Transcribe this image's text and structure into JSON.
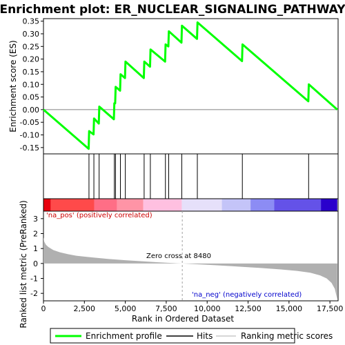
{
  "chart_data": {
    "type": "line",
    "title": "Enrichment plot: ER_NUCLEAR_SIGNALING_PATHWAY",
    "ylabel_top": "Enrichment score (ES)",
    "ylabel_bottom": "Ranked list metric (PreRanked)",
    "xlabel": "Rank in Ordered Dataset",
    "xlim": [
      0,
      18000
    ],
    "es_ylim": [
      -0.175,
      0.36
    ],
    "metric_ylim": [
      -2.5,
      3.5
    ],
    "es_yticks": [
      -0.15,
      -0.1,
      -0.05,
      0.0,
      0.05,
      0.1,
      0.15,
      0.2,
      0.25,
      0.3,
      0.35
    ],
    "es_ytick_labels": [
      "-0.15",
      "-0.10",
      "-0.05",
      "0.00",
      "0.05",
      "0.10",
      "0.15",
      "0.20",
      "0.25",
      "0.30",
      "0.35"
    ],
    "metric_yticks": [
      -2,
      -1,
      0,
      1,
      2,
      3
    ],
    "metric_ytick_labels": [
      "-2",
      "-1",
      "0",
      "1",
      "2",
      "3"
    ],
    "xticks": [
      0,
      2500,
      5000,
      7500,
      10000,
      12500,
      15000,
      17500
    ],
    "xtick_labels": [
      "0",
      "2,500",
      "5,000",
      "7,500",
      "10,000",
      "12,500",
      "15,000",
      "17,500"
    ],
    "hits": [
      2780,
      3080,
      3400,
      4330,
      4400,
      4700,
      5000,
      6150,
      6530,
      7450,
      7650,
      8450,
      9400,
      12150,
      16200
    ],
    "es_curve": [
      [
        0,
        0.0
      ],
      [
        2760,
        -0.155
      ],
      [
        2790,
        -0.085
      ],
      [
        3060,
        -0.098
      ],
      [
        3090,
        -0.035
      ],
      [
        3380,
        -0.055
      ],
      [
        3410,
        0.012
      ],
      [
        4300,
        -0.038
      ],
      [
        4330,
        0.025
      ],
      [
        4380,
        0.025
      ],
      [
        4410,
        0.09
      ],
      [
        4680,
        0.075
      ],
      [
        4710,
        0.14
      ],
      [
        4980,
        0.125
      ],
      [
        5010,
        0.19
      ],
      [
        6130,
        0.125
      ],
      [
        6160,
        0.19
      ],
      [
        6510,
        0.17
      ],
      [
        6540,
        0.238
      ],
      [
        7430,
        0.19
      ],
      [
        7460,
        0.258
      ],
      [
        7630,
        0.25
      ],
      [
        7660,
        0.31
      ],
      [
        8430,
        0.265
      ],
      [
        8460,
        0.332
      ],
      [
        9380,
        0.28
      ],
      [
        9410,
        0.345
      ],
      [
        12130,
        0.192
      ],
      [
        12160,
        0.258
      ],
      [
        16180,
        0.033
      ],
      [
        16210,
        0.1
      ],
      [
        17950,
        0.0
      ]
    ],
    "zero_cross": 8480,
    "zero_cross_label": "Zero cross at 8480",
    "pos_label": "'na_pos' (positively correlated)",
    "neg_label": "'na_neg' (negatively correlated)",
    "metric_curve": [
      [
        0,
        1.75
      ],
      [
        50,
        1.45
      ],
      [
        150,
        1.25
      ],
      [
        300,
        1.1
      ],
      [
        600,
        0.9
      ],
      [
        1000,
        0.75
      ],
      [
        1500,
        0.62
      ],
      [
        2000,
        0.52
      ],
      [
        3000,
        0.4
      ],
      [
        4000,
        0.3
      ],
      [
        5000,
        0.22
      ],
      [
        6000,
        0.15
      ],
      [
        7000,
        0.08
      ],
      [
        8000,
        0.02
      ],
      [
        8480,
        0.0
      ],
      [
        9500,
        -0.06
      ],
      [
        10500,
        -0.12
      ],
      [
        11500,
        -0.18
      ],
      [
        12500,
        -0.25
      ],
      [
        13500,
        -0.32
      ],
      [
        14500,
        -0.4
      ],
      [
        15500,
        -0.5
      ],
      [
        16300,
        -0.62
      ],
      [
        16900,
        -0.8
      ],
      [
        17300,
        -1.0
      ],
      [
        17600,
        -1.3
      ],
      [
        17800,
        -1.7
      ],
      [
        17950,
        -2.4
      ]
    ],
    "colorbar_segments": [
      {
        "from": 0,
        "to": 450,
        "color": "#e8000e"
      },
      {
        "from": 450,
        "to": 3100,
        "color": "#ff4a4a"
      },
      {
        "from": 3100,
        "to": 4500,
        "color": "#ff6e86"
      },
      {
        "from": 4500,
        "to": 6100,
        "color": "#ff94a6"
      },
      {
        "from": 6100,
        "to": 8450,
        "color": "#ffc0e0"
      },
      {
        "from": 8450,
        "to": 10900,
        "color": "#e6e0fa"
      },
      {
        "from": 10900,
        "to": 12650,
        "color": "#c4c4f8"
      },
      {
        "from": 12650,
        "to": 14100,
        "color": "#8c8cf4"
      },
      {
        "from": 14100,
        "to": 16950,
        "color": "#6452e8"
      },
      {
        "from": 16950,
        "to": 17950,
        "color": "#2a00cc"
      }
    ],
    "colors": {
      "es_line": "#00ff00",
      "hit_line": "#000000",
      "metric_fill": "#b0b0b0",
      "pos_label": "#cc0000",
      "neg_label": "#0000cc",
      "zero_line": "#a0a0a0"
    },
    "legend": [
      {
        "label": "Enrichment profile",
        "color": "#00ff00"
      },
      {
        "label": "Hits",
        "color": "#000000"
      },
      {
        "label": "Ranking metric scores",
        "color": "#c8c8c8"
      }
    ]
  }
}
